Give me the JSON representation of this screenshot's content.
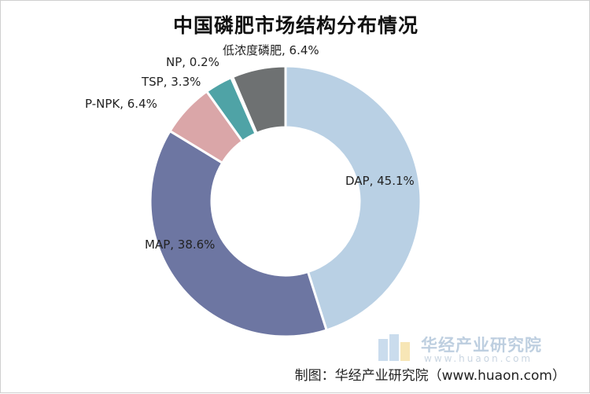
{
  "chart_data": {
    "type": "pie",
    "title": "中国磷肥市场结构分布情况",
    "donut": true,
    "series": [
      {
        "name": "DAP",
        "value": 45.1,
        "label": "DAP, 45.1%",
        "color": "#b9d0e4"
      },
      {
        "name": "MAP",
        "value": 38.6,
        "label": "MAP, 38.6%",
        "color": "#6d76a2"
      },
      {
        "name": "P-NPK",
        "value": 6.4,
        "label": "P-NPK, 6.4%",
        "color": "#daa6a8"
      },
      {
        "name": "TSP",
        "value": 3.3,
        "label": "TSP, 3.3%",
        "color": "#4fa3a6"
      },
      {
        "name": "NP",
        "value": 0.2,
        "label": "NP, 0.2%",
        "color": "#8fb7c6"
      },
      {
        "name": "低浓度磷肥",
        "value": 6.4,
        "label": "低浓度磷肥, 6.4%",
        "color": "#6e7172"
      }
    ]
  },
  "watermark": {
    "name": "华经产业研究院",
    "url": "www.huaon.com",
    "logo_colors": [
      "#9fc0df",
      "#f2d27c"
    ]
  },
  "source": "制图：华经产业研究院（www.huaon.com）"
}
